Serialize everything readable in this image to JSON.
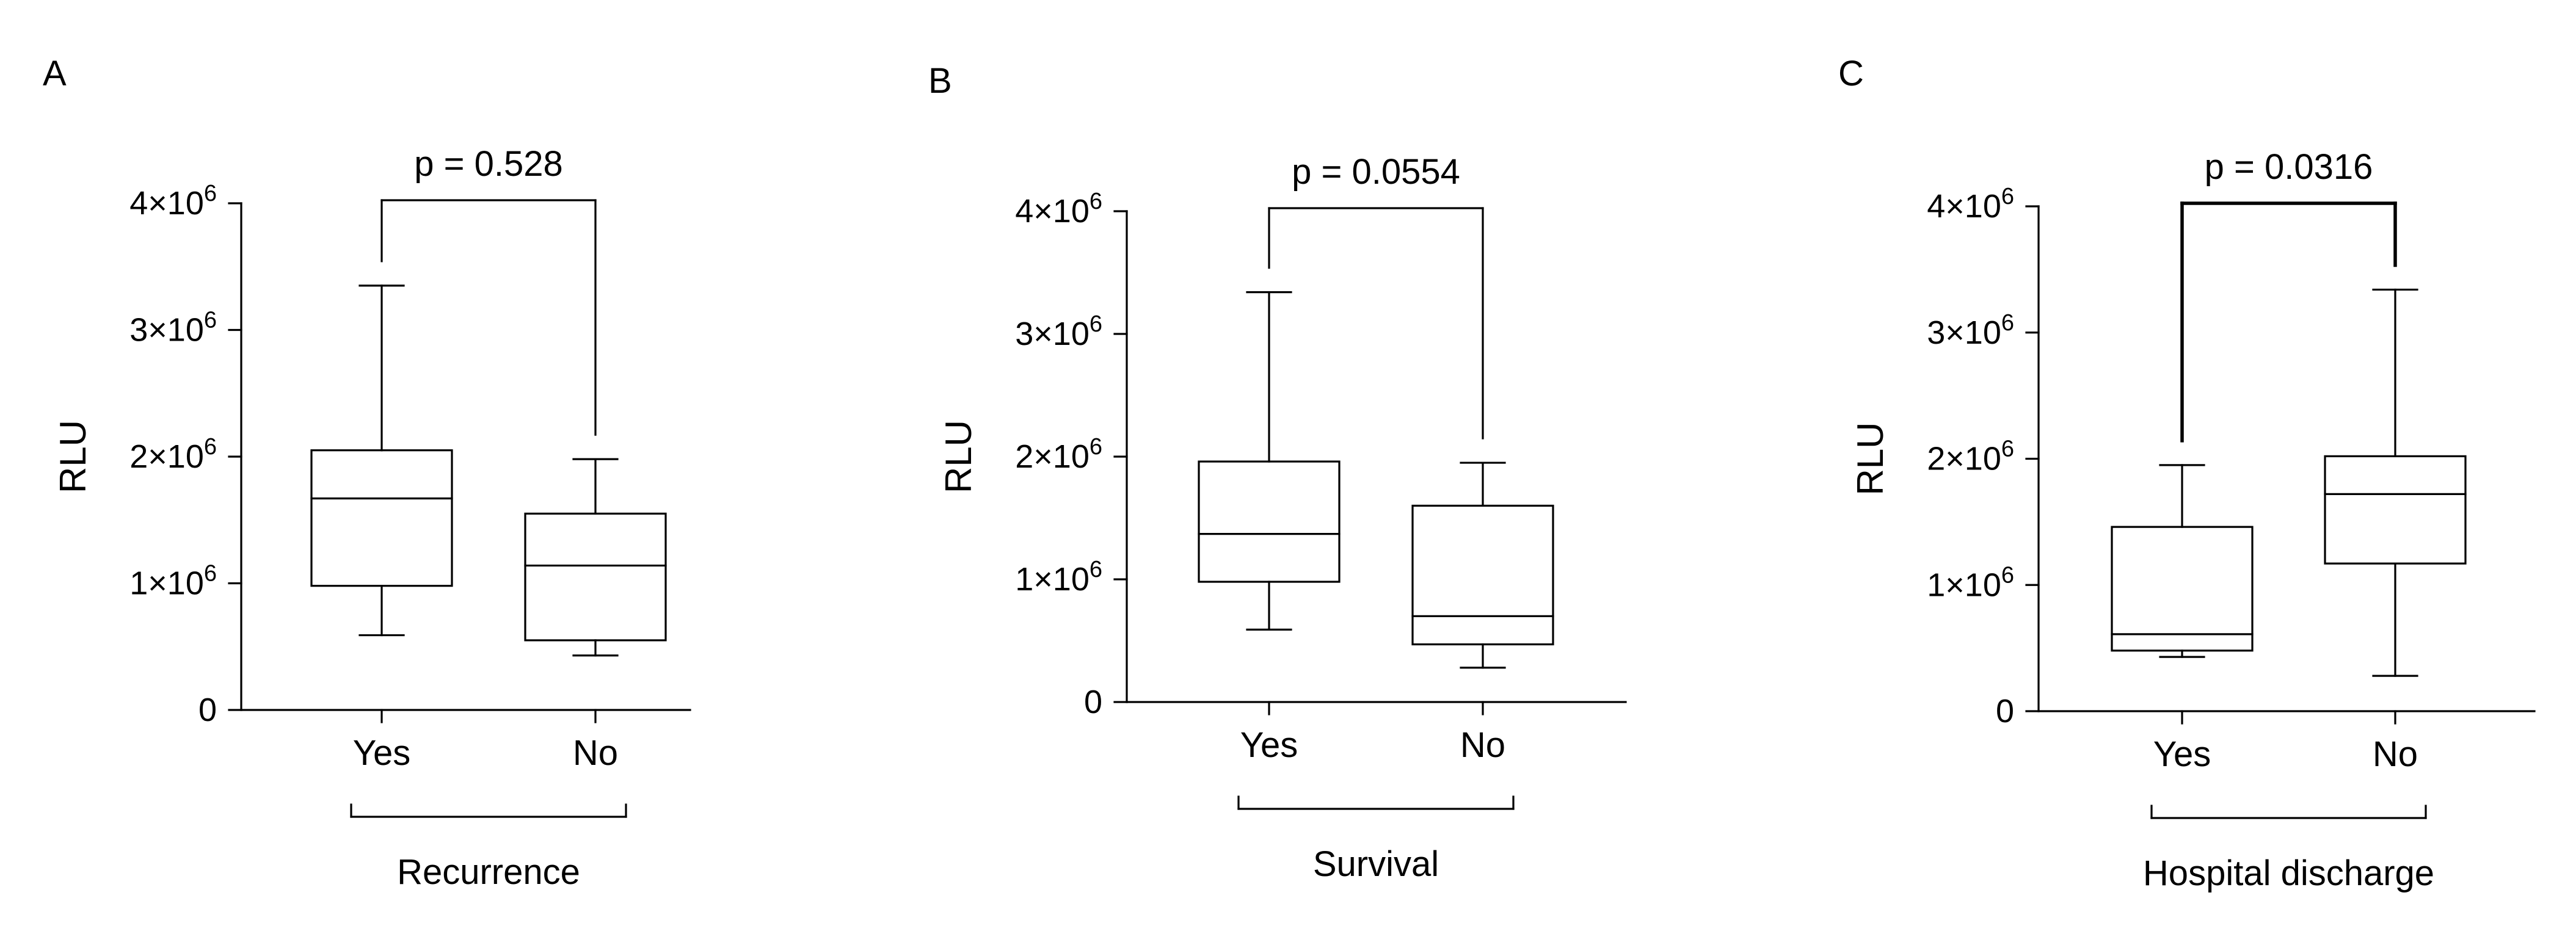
{
  "chart_data": [
    {
      "type": "box",
      "panel_label": "A",
      "ylabel": "RLU",
      "ylim": [
        0,
        4000000
      ],
      "yticks": [
        0,
        1000000,
        2000000,
        3000000,
        4000000
      ],
      "ytick_labels": [
        {
          "base": "0",
          "exp": ""
        },
        {
          "base": "1×10",
          "exp": "6"
        },
        {
          "base": "2×10",
          "exp": "6"
        },
        {
          "base": "3×10",
          "exp": "6"
        },
        {
          "base": "4×10",
          "exp": "6"
        }
      ],
      "categories": [
        "Yes",
        "No"
      ],
      "group_label": "Recurrence",
      "pvalue": "p = 0.528",
      "boxes": [
        {
          "category": "Yes",
          "min": 590000,
          "q1": 980000,
          "median": 1670000,
          "q3": 2050000,
          "max": 3350000
        },
        {
          "category": "No",
          "min": 430000,
          "q1": 550000,
          "median": 1140000,
          "q3": 1550000,
          "max": 1980000
        }
      ],
      "grid": false
    },
    {
      "type": "box",
      "panel_label": "B",
      "ylabel": "RLU",
      "ylim": [
        0,
        4000000
      ],
      "yticks": [
        0,
        1000000,
        2000000,
        3000000,
        4000000
      ],
      "ytick_labels": [
        {
          "base": "0",
          "exp": ""
        },
        {
          "base": "1×10",
          "exp": "6"
        },
        {
          "base": "2×10",
          "exp": "6"
        },
        {
          "base": "3×10",
          "exp": "6"
        },
        {
          "base": "4×10",
          "exp": "6"
        }
      ],
      "categories": [
        "Yes",
        "No"
      ],
      "group_label": "Survival",
      "pvalue": "p = 0.0554",
      "boxes": [
        {
          "category": "Yes",
          "min": 590000,
          "q1": 980000,
          "median": 1370000,
          "q3": 1960000,
          "max": 3340000
        },
        {
          "category": "No",
          "min": 280000,
          "q1": 470000,
          "median": 700000,
          "q3": 1600000,
          "max": 1950000
        }
      ],
      "grid": false
    },
    {
      "type": "box",
      "panel_label": "C",
      "ylabel": "RLU",
      "ylim": [
        0,
        4000000
      ],
      "yticks": [
        0,
        1000000,
        2000000,
        3000000,
        4000000
      ],
      "ytick_labels": [
        {
          "base": "0",
          "exp": ""
        },
        {
          "base": "1×10",
          "exp": "6"
        },
        {
          "base": "2×10",
          "exp": "6"
        },
        {
          "base": "3×10",
          "exp": "6"
        },
        {
          "base": "4×10",
          "exp": "6"
        }
      ],
      "categories": [
        "Yes",
        "No"
      ],
      "group_label": "Hospital discharge",
      "pvalue": "p = 0.0316",
      "boxes": [
        {
          "category": "Yes",
          "min": 430000,
          "q1": 480000,
          "median": 610000,
          "q3": 1460000,
          "max": 1950000
        },
        {
          "category": "No",
          "min": 280000,
          "q1": 1170000,
          "median": 1720000,
          "q3": 2020000,
          "max": 3340000
        }
      ],
      "grid": false
    }
  ]
}
